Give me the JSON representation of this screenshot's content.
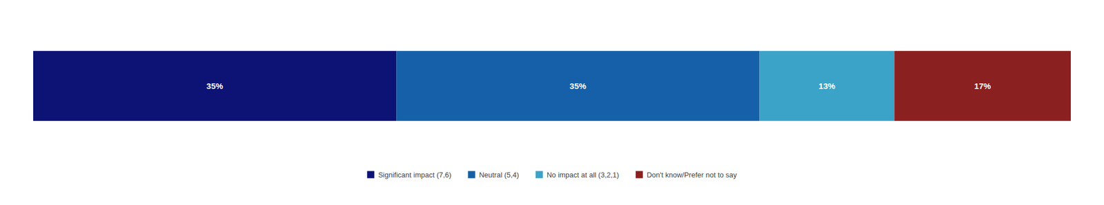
{
  "chart_data": {
    "type": "bar",
    "orientation": "horizontal",
    "stacked": true,
    "categories": [
      null
    ],
    "series": [
      {
        "name": "Significant impact (7,6)",
        "color": "#0d1275",
        "values": [
          35
        ],
        "value_labels": [
          "35%"
        ]
      },
      {
        "name": "Neutral (5,4)",
        "color": "#1560a8",
        "values": [
          35
        ],
        "value_labels": [
          "35%"
        ]
      },
      {
        "name": "No impact at all (3,2,1)",
        "color": "#3ca3c8",
        "values": [
          13
        ],
        "value_labels": [
          "13%"
        ]
      },
      {
        "name": "Don't know/Prefer not to say",
        "color": "#8b2020",
        "values": [
          17
        ],
        "value_labels": [
          "17%"
        ]
      }
    ],
    "xlim": [
      0,
      100
    ],
    "tick_labels": false,
    "data_labels": true,
    "legend": "bottom"
  }
}
